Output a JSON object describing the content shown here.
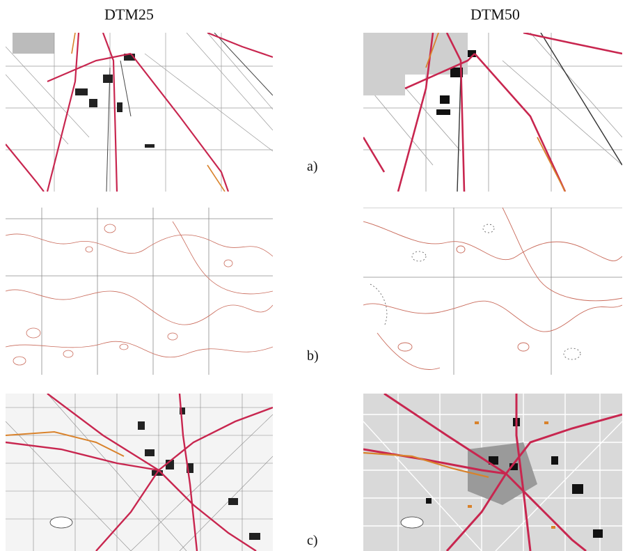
{
  "columns": [
    "DTM25",
    "DTM50"
  ],
  "rows": [
    {
      "label": "a)",
      "content": "roads-and-railways-map"
    },
    {
      "label": "b)",
      "content": "contour-lines-map"
    },
    {
      "label": "c)",
      "content": "urban-area-map"
    }
  ],
  "colors": {
    "road_major": "#c8264f",
    "road_secondary": "#d9822b",
    "grid": "#8a8a8a",
    "contour": "#c96a5a",
    "building": "#111111",
    "urban_fill_dtm50": "#d9d9d9"
  }
}
